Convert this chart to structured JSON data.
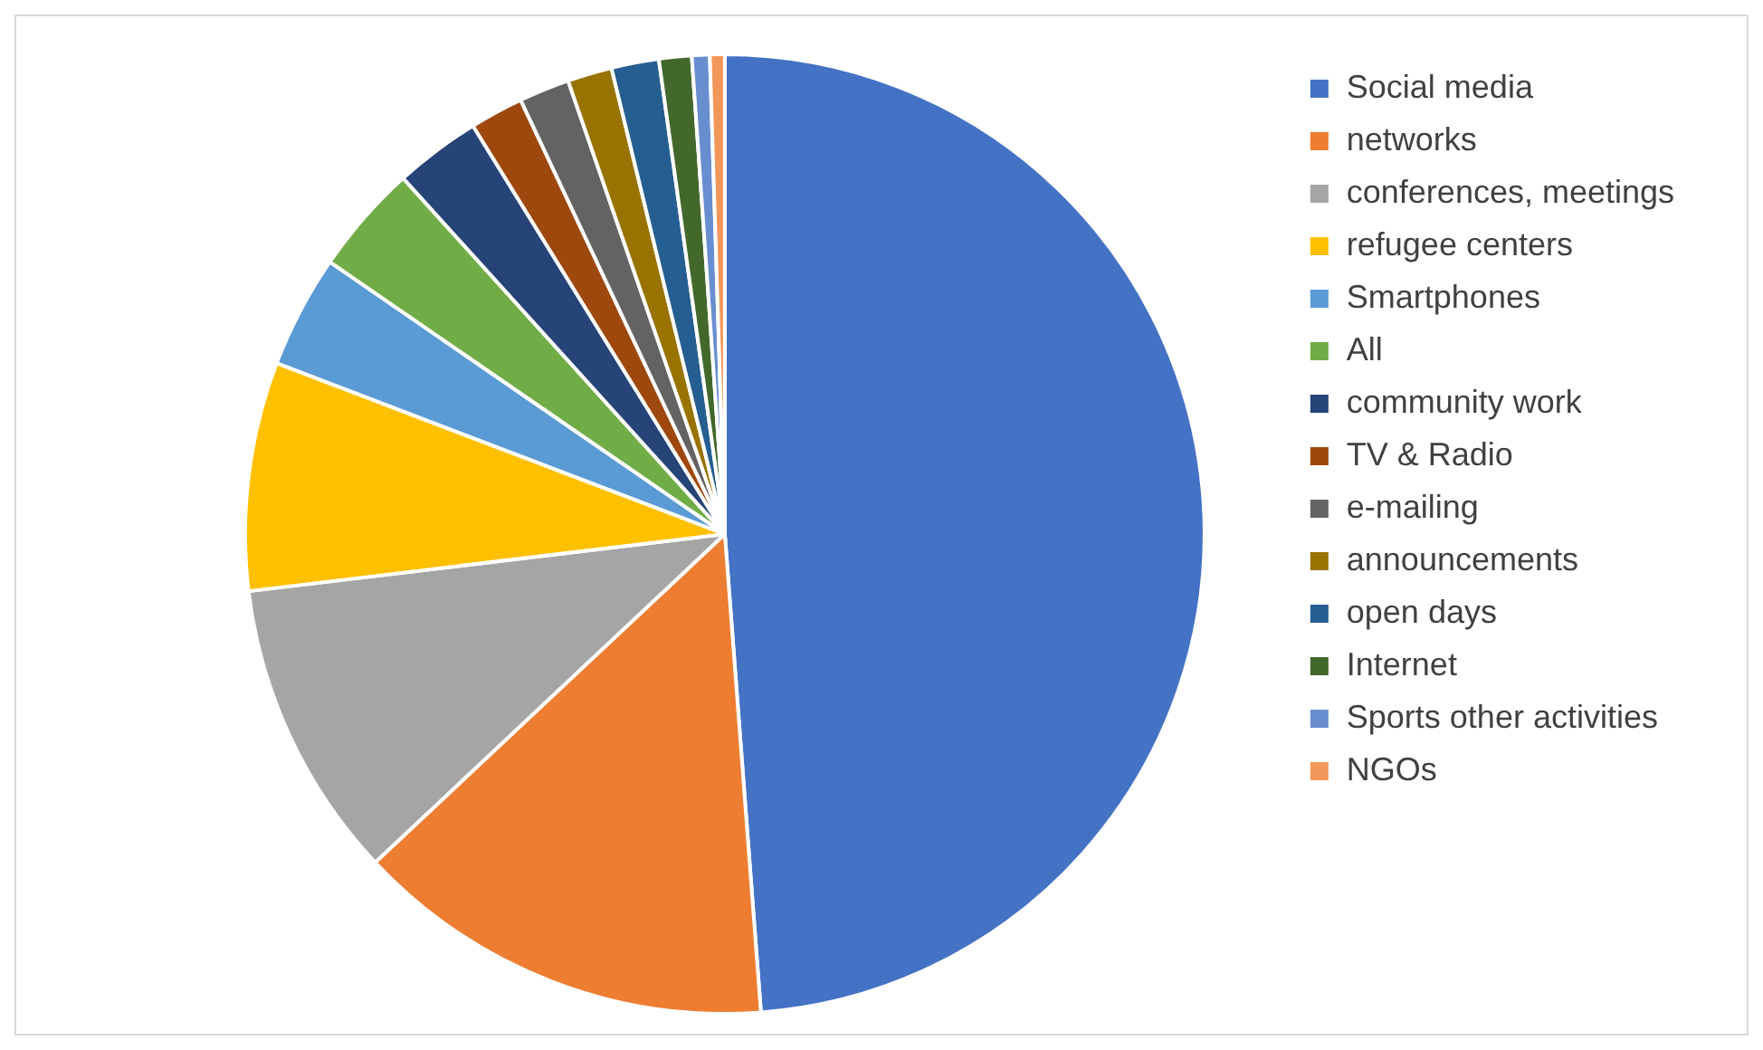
{
  "chart_data": {
    "type": "pie",
    "categories": [
      "Social media",
      "networks",
      "conferences, meetings",
      "refugee centers",
      "Smartphones",
      "All",
      "community work",
      "TV & Radio",
      "e-mailing",
      "announcements",
      "open days",
      "Internet",
      "Sports other activities",
      "NGOs"
    ],
    "values": [
      48.8,
      14.2,
      10.1,
      7.7,
      3.8,
      3.7,
      2.9,
      1.8,
      1.7,
      1.5,
      1.6,
      1.1,
      0.6,
      0.5
    ],
    "colors": [
      "#4472c4",
      "#ed7d31",
      "#a5a5a5",
      "#ffc000",
      "#5b9bd5",
      "#70ad47",
      "#264478",
      "#9e480e",
      "#636363",
      "#997300",
      "#255e91",
      "#43682b",
      "#698ed0",
      "#f1975a"
    ],
    "legend": "right"
  }
}
